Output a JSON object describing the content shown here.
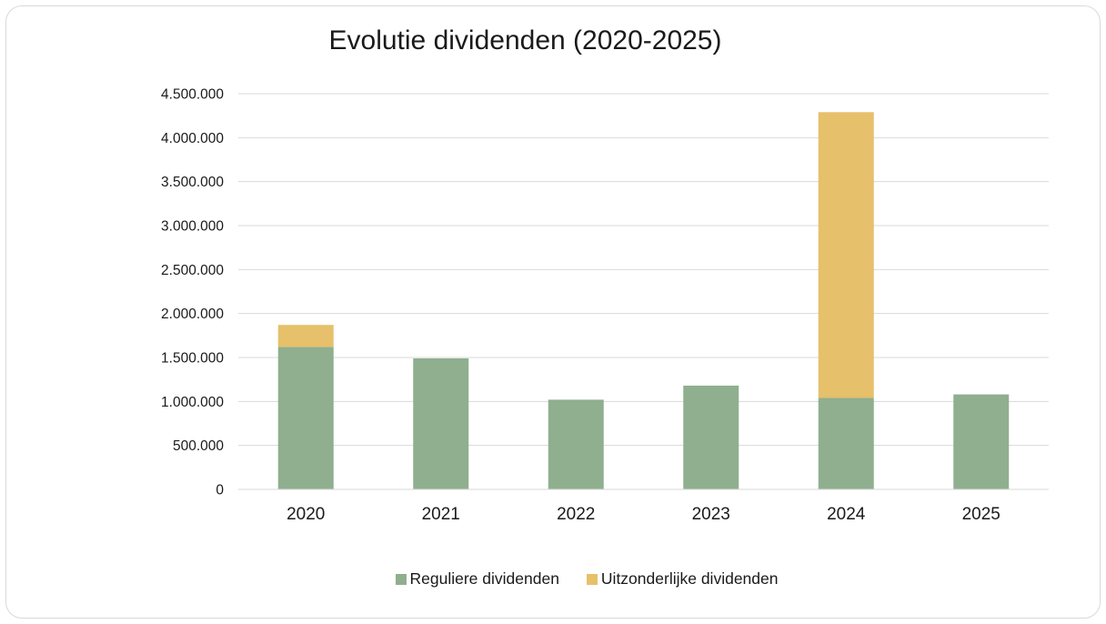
{
  "chart_data": {
    "type": "bar",
    "stacked": true,
    "title": "Evolutie dividenden (2020-2025)",
    "xlabel": "",
    "ylabel": "",
    "categories": [
      "2020",
      "2021",
      "2022",
      "2023",
      "2024",
      "2025"
    ],
    "series": [
      {
        "name": "Reguliere dividenden",
        "color": "#8faf8f",
        "values": [
          1620000,
          1490000,
          1020000,
          1180000,
          1040000,
          1080000
        ]
      },
      {
        "name": "Uitzonderlijke dividenden",
        "color": "#e6c06a",
        "values": [
          250000,
          0,
          0,
          0,
          3250000,
          0
        ]
      }
    ],
    "ylim": [
      0,
      4500000
    ],
    "yticks": [
      "0",
      "500.000",
      "1.000.000",
      "1.500.000",
      "2.000.000",
      "2.500.000",
      "3.000.000",
      "3.500.000",
      "4.000.000",
      "4.500.000"
    ],
    "grid": true,
    "gridline_color": "#d9d9d9",
    "legend_position": "bottom"
  }
}
